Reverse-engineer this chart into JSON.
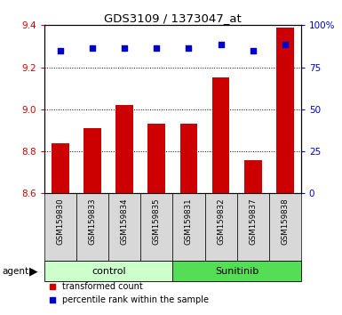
{
  "title": "GDS3109 / 1373047_at",
  "samples": [
    "GSM159830",
    "GSM159833",
    "GSM159834",
    "GSM159835",
    "GSM159831",
    "GSM159832",
    "GSM159837",
    "GSM159838"
  ],
  "bar_values": [
    8.84,
    8.91,
    9.02,
    8.93,
    8.93,
    9.15,
    8.76,
    9.39
  ],
  "percentile_values": [
    9.28,
    9.29,
    9.29,
    9.29,
    9.29,
    9.31,
    9.28,
    9.31
  ],
  "bar_color": "#cc0000",
  "percentile_color": "#0000cc",
  "ylim_left": [
    8.6,
    9.4
  ],
  "yticks_left": [
    8.6,
    8.8,
    9.0,
    9.2,
    9.4
  ],
  "yticks_right": [
    0,
    25,
    50,
    75,
    100
  ],
  "ytick_labels_right": [
    "0",
    "25",
    "50",
    "75",
    "100%"
  ],
  "grid_values": [
    8.8,
    9.0,
    9.2
  ],
  "groups": [
    {
      "label": "control",
      "start": 0,
      "end": 4,
      "color": "#ccffcc"
    },
    {
      "label": "Sunitinib",
      "start": 4,
      "end": 8,
      "color": "#55dd55"
    }
  ],
  "agent_label": "agent",
  "legend_bar_label": "transformed count",
  "legend_pct_label": "percentile rank within the sample",
  "bar_width": 0.55,
  "tick_bg_color": "#d8d8d8",
  "plot_bg": "#ffffff"
}
